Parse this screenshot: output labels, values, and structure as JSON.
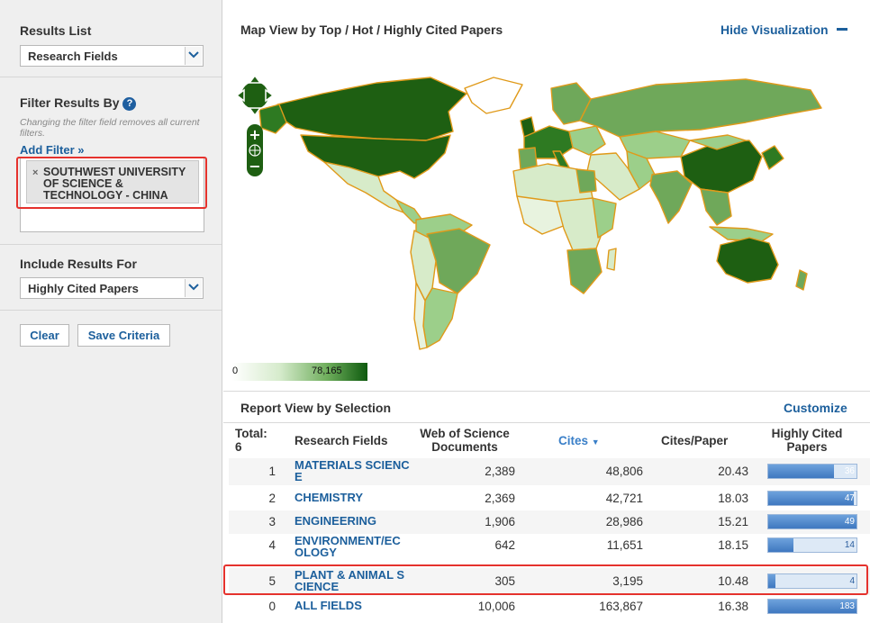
{
  "left": {
    "results_list": {
      "title": "Results List",
      "selected": "Research Fields"
    },
    "filter": {
      "title": "Filter Results By",
      "help": "?",
      "hint": "Changing the filter field removes all current filters.",
      "add_filter": "Add Filter »",
      "chip_remove": "×",
      "chip_text": "SOUTHWEST UNIVERSITY OF SCIENCE & TECHNOLOGY - CHINA"
    },
    "include": {
      "title": "Include Results For",
      "selected": "Highly Cited Papers"
    },
    "buttons": {
      "clear": "Clear",
      "save": "Save Criteria"
    }
  },
  "map_view": {
    "title": "Map View by Top / Hot / Highly Cited Papers",
    "hide": "Hide Visualization",
    "legend_min": "0",
    "legend_max": "78,165",
    "colors": {
      "border": "#e09a1a",
      "ocean": "#ffffff",
      "dark": "#1e5f12",
      "mid": "#6fa85a",
      "light": "#d7ebc9"
    }
  },
  "report": {
    "title": "Report View by Selection",
    "customize": "Customize",
    "headers": {
      "total_label": "Total:",
      "total_value": "6",
      "field": "Research Fields",
      "docs": "Web of Science Documents",
      "cites": "Cites",
      "cpp": "Cites/Paper",
      "hcp": "Highly Cited Papers"
    },
    "rows": [
      {
        "rank": "1",
        "field": "MATERIALS SCIENCE",
        "docs": "2,389",
        "cites": "48,806",
        "cpp": "20.43",
        "hcp": "36",
        "fill": 0.74
      },
      {
        "rank": "2",
        "field": "CHEMISTRY",
        "docs": "2,369",
        "cites": "42,721",
        "cpp": "18.03",
        "hcp": "47",
        "fill": 0.97
      },
      {
        "rank": "3",
        "field": "ENGINEERING",
        "docs": "1,906",
        "cites": "28,986",
        "cpp": "15.21",
        "hcp": "49",
        "fill": 1.0
      },
      {
        "rank": "4",
        "field": "ENVIRONMENT/ECOLOGY",
        "docs": "642",
        "cites": "11,651",
        "cpp": "18.15",
        "hcp": "14",
        "fill": 0.29
      },
      {
        "rank": "5",
        "field": "PLANT & ANIMAL SCIENCE",
        "docs": "305",
        "cites": "3,195",
        "cpp": "10.48",
        "hcp": "4",
        "fill": 0.08
      },
      {
        "rank": "0",
        "field": "ALL FIELDS",
        "docs": "10,006",
        "cites": "163,867",
        "cpp": "16.38",
        "hcp": "183",
        "fill": 1.0
      }
    ]
  }
}
